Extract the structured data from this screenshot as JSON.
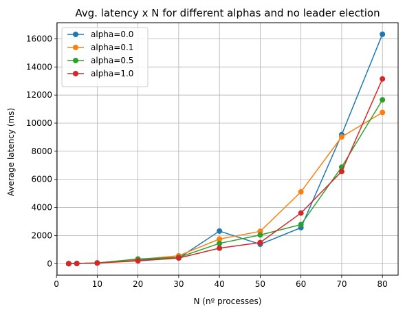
{
  "chart_data": {
    "type": "line",
    "title": "Avg. latency x N for different alphas and no leader election",
    "xlabel": "N (nº processes)",
    "ylabel": "Average latency (ms)",
    "xlim": [
      0.15,
      83.85
    ],
    "ylim": [
      -820,
      17150
    ],
    "xticks": [
      0,
      10,
      20,
      30,
      40,
      50,
      60,
      70,
      80
    ],
    "yticks": [
      0,
      2000,
      4000,
      6000,
      8000,
      10000,
      12000,
      14000,
      16000
    ],
    "grid": true,
    "legend_position": "top-left",
    "x": [
      3,
      5,
      10,
      20,
      30,
      40,
      50,
      60,
      70,
      80
    ],
    "series": [
      {
        "name": "alpha=0.0",
        "color": "#1f77b4",
        "values": [
          0,
          10,
          50,
          250,
          400,
          2320,
          1380,
          2560,
          9180,
          16330
        ]
      },
      {
        "name": "alpha=0.1",
        "color": "#ff7f0e",
        "values": [
          0,
          10,
          50,
          300,
          560,
          1750,
          2300,
          5110,
          9020,
          10760
        ]
      },
      {
        "name": "alpha=0.5",
        "color": "#2ca02c",
        "values": [
          0,
          10,
          50,
          330,
          450,
          1440,
          2040,
          2780,
          6870,
          11660
        ]
      },
      {
        "name": "alpha=1.0",
        "color": "#d62728",
        "values": [
          0,
          10,
          40,
          200,
          400,
          1100,
          1500,
          3600,
          6560,
          13150
        ]
      }
    ]
  }
}
